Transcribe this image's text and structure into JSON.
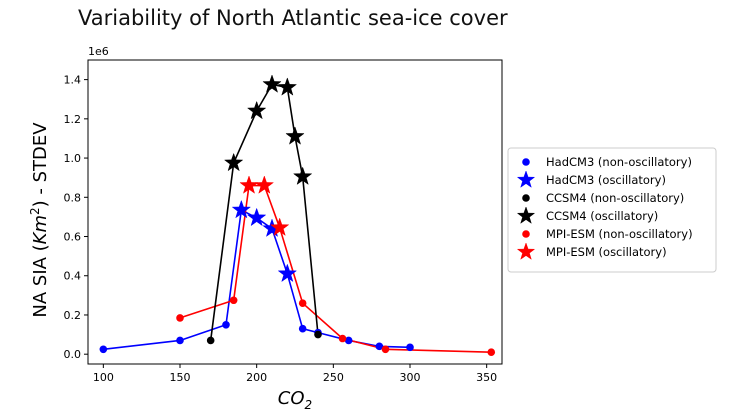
{
  "chart_data": {
    "type": "line",
    "title": "Variability of North Atlantic sea-ice cover",
    "xlabel": "CO2",
    "ylabel": "NA SIA (Km2) - STDEV",
    "y_offset_label": "1e6",
    "xlim": [
      90,
      360
    ],
    "ylim": [
      -0.05,
      1.5
    ],
    "x_ticks": [
      100,
      150,
      200,
      250,
      300,
      350
    ],
    "y_ticks": [
      0.0,
      0.2,
      0.4,
      0.6,
      0.8,
      1.0,
      1.2,
      1.4
    ],
    "x_tick_labels": [
      "100",
      "150",
      "200",
      "250",
      "300",
      "350"
    ],
    "y_tick_labels": [
      "0.0",
      "0.2",
      "0.4",
      "0.6",
      "0.8",
      "1.0",
      "1.2",
      "1.4"
    ],
    "legend_position": "outside-right",
    "series": [
      {
        "model": "HadCM3",
        "color": "#0000ff",
        "points": [
          {
            "x": 100,
            "y": 0.025,
            "osc": false
          },
          {
            "x": 150,
            "y": 0.07,
            "osc": false
          },
          {
            "x": 180,
            "y": 0.15,
            "osc": false
          },
          {
            "x": 190,
            "y": 0.735,
            "osc": true
          },
          {
            "x": 200,
            "y": 0.695,
            "osc": true
          },
          {
            "x": 210,
            "y": 0.64,
            "osc": true
          },
          {
            "x": 220,
            "y": 0.41,
            "osc": true
          },
          {
            "x": 230,
            "y": 0.13,
            "osc": false
          },
          {
            "x": 240,
            "y": 0.11,
            "osc": false
          },
          {
            "x": 260,
            "y": 0.07,
            "osc": false
          },
          {
            "x": 280,
            "y": 0.04,
            "osc": false
          },
          {
            "x": 300,
            "y": 0.035,
            "osc": false
          }
        ]
      },
      {
        "model": "CCSM4",
        "color": "#000000",
        "points": [
          {
            "x": 170,
            "y": 0.07,
            "osc": false
          },
          {
            "x": 185,
            "y": 0.975,
            "osc": true
          },
          {
            "x": 200,
            "y": 1.24,
            "osc": true
          },
          {
            "x": 210,
            "y": 1.375,
            "osc": true
          },
          {
            "x": 220,
            "y": 1.36,
            "osc": true
          },
          {
            "x": 225,
            "y": 1.11,
            "osc": true
          },
          {
            "x": 230,
            "y": 0.905,
            "osc": true
          },
          {
            "x": 240,
            "y": 0.1,
            "osc": false
          }
        ]
      },
      {
        "model": "MPI-ESM",
        "color": "#ff0000",
        "points": [
          {
            "x": 150,
            "y": 0.185,
            "osc": false
          },
          {
            "x": 185,
            "y": 0.275,
            "osc": false
          },
          {
            "x": 195,
            "y": 0.86,
            "osc": true
          },
          {
            "x": 205,
            "y": 0.86,
            "osc": true
          },
          {
            "x": 215,
            "y": 0.645,
            "osc": true
          },
          {
            "x": 230,
            "y": 0.26,
            "osc": false
          },
          {
            "x": 256,
            "y": 0.08,
            "osc": false
          },
          {
            "x": 284,
            "y": 0.025,
            "osc": false
          },
          {
            "x": 353,
            "y": 0.01,
            "osc": false
          }
        ]
      }
    ],
    "legend": [
      {
        "label": "HadCM3 (non-oscillatory)",
        "color": "#0000ff",
        "marker": "dot"
      },
      {
        "label": "HadCM3 (oscillatory)",
        "color": "#0000ff",
        "marker": "star"
      },
      {
        "label": "CCSM4 (non-oscillatory)",
        "color": "#000000",
        "marker": "dot"
      },
      {
        "label": "CCSM4 (oscillatory)",
        "color": "#000000",
        "marker": "star"
      },
      {
        "label": "MPI-ESM (non-oscillatory)",
        "color": "#ff0000",
        "marker": "dot"
      },
      {
        "label": "MPI-ESM (oscillatory)",
        "color": "#ff0000",
        "marker": "star"
      }
    ]
  }
}
